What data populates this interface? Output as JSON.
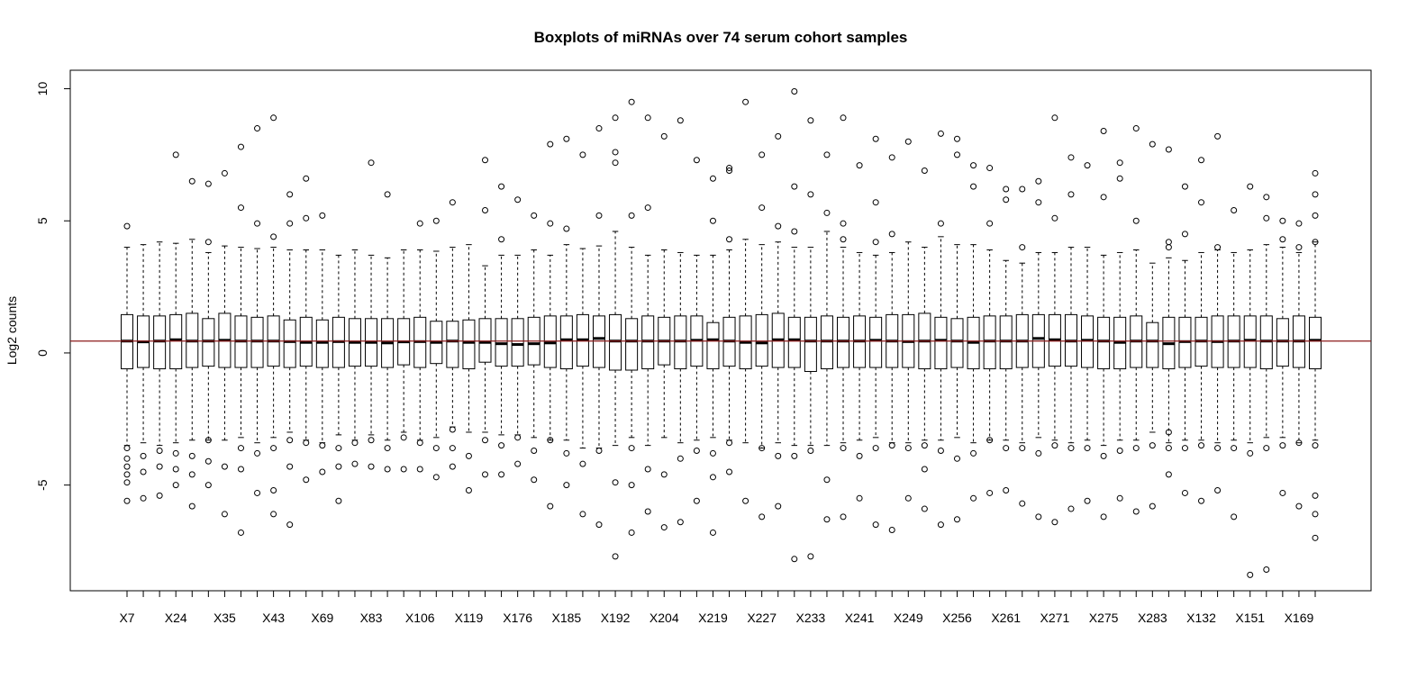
{
  "chart_data": {
    "type": "boxplot",
    "title": "Boxplots of miRNAs over 74 serum cohort samples",
    "xlabel": "",
    "ylabel": "Log2 counts",
    "ylim": [
      -9,
      10.7
    ],
    "y_ticks": [
      -5,
      0,
      5,
      10
    ],
    "x_tick_labels": [
      "X7",
      "X24",
      "X35",
      "X43",
      "X69",
      "X83",
      "X106",
      "X119",
      "X176",
      "X185",
      "X192",
      "X204",
      "X219",
      "X227",
      "X233",
      "X241",
      "X249",
      "X256",
      "X261",
      "X271",
      "X275",
      "X283",
      "X132",
      "X151",
      "X169"
    ],
    "label_every": 3,
    "n_boxes": 74,
    "reference_line": {
      "y": 0.45,
      "color": "#8b1a1a"
    },
    "grid": false,
    "colors": {
      "box": "#000000",
      "median": "#000000",
      "reference": "#8b1a1a"
    },
    "boxes": {
      "q1": [
        -0.6,
        -0.55,
        -0.6,
        -0.6,
        -0.55,
        -0.5,
        -0.55,
        -0.55,
        -0.55,
        -0.5,
        -0.55,
        -0.5,
        -0.55,
        -0.55,
        -0.5,
        -0.5,
        -0.55,
        -0.45,
        -0.55,
        -0.4,
        -0.55,
        -0.6,
        -0.35,
        -0.5,
        -0.5,
        -0.45,
        -0.55,
        -0.6,
        -0.5,
        -0.55,
        -0.65,
        -0.65,
        -0.6,
        -0.45,
        -0.6,
        -0.5,
        -0.6,
        -0.5,
        -0.6,
        -0.5,
        -0.55,
        -0.55,
        -0.7,
        -0.6,
        -0.55,
        -0.55,
        -0.55,
        -0.55,
        -0.55,
        -0.6,
        -0.6,
        -0.55,
        -0.6,
        -0.6,
        -0.6,
        -0.55,
        -0.55,
        -0.5,
        -0.5,
        -0.55,
        -0.6,
        -0.6,
        -0.55,
        -0.55,
        -0.6,
        -0.55,
        -0.5,
        -0.55,
        -0.55,
        -0.55,
        -0.6,
        -0.5,
        -0.55,
        -0.6
      ],
      "median": [
        0.45,
        0.42,
        0.45,
        0.5,
        0.45,
        0.45,
        0.48,
        0.45,
        0.45,
        0.45,
        0.43,
        0.4,
        0.4,
        0.43,
        0.4,
        0.4,
        0.38,
        0.42,
        0.43,
        0.4,
        0.45,
        0.4,
        0.4,
        0.35,
        0.32,
        0.35,
        0.38,
        0.5,
        0.5,
        0.55,
        0.45,
        0.45,
        0.45,
        0.45,
        0.45,
        0.48,
        0.5,
        0.45,
        0.4,
        0.38,
        0.5,
        0.5,
        0.45,
        0.45,
        0.45,
        0.45,
        0.48,
        0.45,
        0.43,
        0.45,
        0.48,
        0.45,
        0.4,
        0.45,
        0.45,
        0.45,
        0.55,
        0.5,
        0.45,
        0.48,
        0.45,
        0.4,
        0.45,
        0.45,
        0.35,
        0.43,
        0.45,
        0.43,
        0.45,
        0.48,
        0.45,
        0.45,
        0.45,
        0.48
      ],
      "q3": [
        1.45,
        1.4,
        1.4,
        1.45,
        1.5,
        1.3,
        1.5,
        1.4,
        1.35,
        1.4,
        1.25,
        1.35,
        1.25,
        1.35,
        1.3,
        1.3,
        1.3,
        1.3,
        1.35,
        1.2,
        1.2,
        1.25,
        1.3,
        1.3,
        1.3,
        1.35,
        1.4,
        1.4,
        1.45,
        1.4,
        1.45,
        1.3,
        1.4,
        1.35,
        1.4,
        1.4,
        1.15,
        1.35,
        1.4,
        1.45,
        1.5,
        1.35,
        1.35,
        1.4,
        1.35,
        1.4,
        1.35,
        1.45,
        1.45,
        1.5,
        1.35,
        1.3,
        1.35,
        1.4,
        1.4,
        1.45,
        1.45,
        1.45,
        1.45,
        1.4,
        1.35,
        1.35,
        1.4,
        1.15,
        1.35,
        1.35,
        1.35,
        1.4,
        1.4,
        1.4,
        1.4,
        1.3,
        1.4,
        1.35
      ],
      "whisker_low": [
        -3.5,
        -3.4,
        -3.5,
        -3.4,
        -3.3,
        -3.3,
        -3.3,
        -3.2,
        -3.4,
        -3.2,
        -3.0,
        -3.3,
        -3.4,
        -3.1,
        -3.3,
        -3.1,
        -3.3,
        -3.0,
        -3.3,
        -3.2,
        -2.8,
        -3.0,
        -3.0,
        -3.1,
        -3.1,
        -3.2,
        -3.3,
        -3.3,
        -3.6,
        -3.6,
        -3.5,
        -3.2,
        -3.5,
        -3.2,
        -3.4,
        -3.3,
        -3.2,
        -3.3,
        -3.4,
        -3.6,
        -3.4,
        -3.5,
        -3.5,
        -3.5,
        -3.4,
        -3.3,
        -3.2,
        -3.4,
        -3.4,
        -3.3,
        -3.3,
        -3.2,
        -3.4,
        -3.3,
        -3.3,
        -3.4,
        -3.2,
        -3.3,
        -3.4,
        -3.3,
        -3.5,
        -3.3,
        -3.3,
        -3.0,
        -3.4,
        -3.3,
        -3.3,
        -3.4,
        -3.3,
        -3.4,
        -3.2,
        -3.2,
        -3.4,
        -3.3
      ],
      "whisker_high": [
        4.0,
        4.1,
        4.2,
        4.15,
        4.3,
        3.8,
        4.05,
        4.0,
        3.95,
        4.0,
        3.9,
        3.9,
        3.9,
        3.7,
        3.9,
        3.7,
        3.6,
        3.9,
        3.9,
        3.85,
        4.0,
        4.1,
        3.3,
        3.7,
        3.7,
        3.9,
        3.7,
        4.1,
        3.95,
        4.05,
        4.6,
        4.0,
        3.7,
        3.9,
        3.8,
        3.7,
        3.7,
        3.9,
        4.3,
        4.1,
        4.2,
        4.0,
        4.0,
        4.6,
        4.0,
        3.8,
        3.7,
        3.8,
        4.2,
        4.0,
        4.4,
        4.1,
        4.1,
        3.9,
        3.5,
        3.4,
        3.8,
        3.8,
        4.0,
        4.0,
        3.7,
        3.8,
        3.9,
        3.4,
        3.6,
        3.5,
        3.8,
        3.9,
        3.8,
        3.9,
        4.1,
        4.0,
        3.8,
        4.2
      ]
    },
    "outliers": [
      [
        1,
        4.8
      ],
      [
        1,
        -3.6
      ],
      [
        1,
        -4.0
      ],
      [
        1,
        -4.3
      ],
      [
        1,
        -4.6
      ],
      [
        1,
        -4.9
      ],
      [
        1,
        -5.6
      ],
      [
        2,
        -3.9
      ],
      [
        2,
        -4.5
      ],
      [
        2,
        -5.5
      ],
      [
        3,
        -3.7
      ],
      [
        3,
        -4.3
      ],
      [
        3,
        -5.4
      ],
      [
        4,
        7.5
      ],
      [
        4,
        -3.8
      ],
      [
        4,
        -4.4
      ],
      [
        4,
        -5.0
      ],
      [
        5,
        6.5
      ],
      [
        5,
        -3.9
      ],
      [
        5,
        -4.6
      ],
      [
        5,
        -5.8
      ],
      [
        6,
        6.4
      ],
      [
        6,
        4.2
      ],
      [
        6,
        -3.3
      ],
      [
        6,
        -4.1
      ],
      [
        6,
        -5.0
      ],
      [
        7,
        6.8
      ],
      [
        7,
        -4.3
      ],
      [
        7,
        -6.1
      ],
      [
        8,
        7.8
      ],
      [
        8,
        5.5
      ],
      [
        8,
        -3.6
      ],
      [
        8,
        -4.4
      ],
      [
        8,
        -6.8
      ],
      [
        9,
        8.5
      ],
      [
        9,
        4.9
      ],
      [
        9,
        -3.8
      ],
      [
        9,
        -5.3
      ],
      [
        10,
        8.9
      ],
      [
        10,
        4.4
      ],
      [
        10,
        -3.6
      ],
      [
        10,
        -5.2
      ],
      [
        10,
        -6.1
      ],
      [
        11,
        6.0
      ],
      [
        11,
        4.9
      ],
      [
        11,
        -3.3
      ],
      [
        11,
        -4.3
      ],
      [
        11,
        -6.5
      ],
      [
        12,
        6.6
      ],
      [
        12,
        5.1
      ],
      [
        12,
        -3.4
      ],
      [
        12,
        -4.8
      ],
      [
        13,
        5.2
      ],
      [
        13,
        -3.5
      ],
      [
        13,
        -4.5
      ],
      [
        14,
        -3.6
      ],
      [
        14,
        -4.3
      ],
      [
        14,
        -5.6
      ],
      [
        15,
        -3.4
      ],
      [
        15,
        -4.2
      ],
      [
        16,
        7.2
      ],
      [
        16,
        -3.3
      ],
      [
        16,
        -4.3
      ],
      [
        17,
        6.0
      ],
      [
        17,
        -3.6
      ],
      [
        17,
        -4.4
      ],
      [
        18,
        -3.2
      ],
      [
        18,
        -4.4
      ],
      [
        19,
        4.9
      ],
      [
        19,
        -3.4
      ],
      [
        19,
        -4.4
      ],
      [
        20,
        5.0
      ],
      [
        20,
        -3.6
      ],
      [
        20,
        -4.7
      ],
      [
        21,
        5.7
      ],
      [
        21,
        -2.9
      ],
      [
        21,
        -3.6
      ],
      [
        21,
        -4.3
      ],
      [
        22,
        -3.9
      ],
      [
        22,
        -5.2
      ],
      [
        23,
        7.3
      ],
      [
        23,
        5.4
      ],
      [
        23,
        -3.3
      ],
      [
        23,
        -4.6
      ],
      [
        24,
        6.3
      ],
      [
        24,
        4.3
      ],
      [
        24,
        -3.5
      ],
      [
        24,
        -4.6
      ],
      [
        25,
        5.8
      ],
      [
        25,
        -3.2
      ],
      [
        25,
        -4.2
      ],
      [
        26,
        5.2
      ],
      [
        26,
        -3.7
      ],
      [
        26,
        -4.8
      ],
      [
        27,
        7.9
      ],
      [
        27,
        4.9
      ],
      [
        27,
        -3.3
      ],
      [
        27,
        -5.8
      ],
      [
        28,
        8.1
      ],
      [
        28,
        4.7
      ],
      [
        28,
        -3.8
      ],
      [
        28,
        -5.0
      ],
      [
        29,
        7.5
      ],
      [
        29,
        -4.2
      ],
      [
        29,
        -6.1
      ],
      [
        30,
        8.5
      ],
      [
        30,
        5.2
      ],
      [
        30,
        -3.7
      ],
      [
        30,
        -6.5
      ],
      [
        31,
        8.9
      ],
      [
        31,
        7.6
      ],
      [
        31,
        7.2
      ],
      [
        31,
        -4.9
      ],
      [
        31,
        -7.7
      ],
      [
        32,
        9.5
      ],
      [
        32,
        5.2
      ],
      [
        32,
        -3.6
      ],
      [
        32,
        -5.0
      ],
      [
        32,
        -6.8
      ],
      [
        33,
        8.9
      ],
      [
        33,
        5.5
      ],
      [
        33,
        -4.4
      ],
      [
        33,
        -6.0
      ],
      [
        34,
        8.2
      ],
      [
        34,
        -4.6
      ],
      [
        34,
        -6.6
      ],
      [
        35,
        8.8
      ],
      [
        35,
        -4.0
      ],
      [
        35,
        -6.4
      ],
      [
        36,
        7.3
      ],
      [
        36,
        -3.7
      ],
      [
        36,
        -5.6
      ],
      [
        37,
        6.6
      ],
      [
        37,
        5.0
      ],
      [
        37,
        -3.8
      ],
      [
        37,
        -4.7
      ],
      [
        37,
        -6.8
      ],
      [
        38,
        7.0
      ],
      [
        38,
        6.9
      ],
      [
        38,
        4.3
      ],
      [
        38,
        -3.4
      ],
      [
        38,
        -4.5
      ],
      [
        39,
        9.5
      ],
      [
        39,
        -5.6
      ],
      [
        40,
        7.5
      ],
      [
        40,
        5.5
      ],
      [
        40,
        -3.6
      ],
      [
        40,
        -6.2
      ],
      [
        41,
        8.2
      ],
      [
        41,
        4.8
      ],
      [
        41,
        -3.9
      ],
      [
        41,
        -5.8
      ],
      [
        42,
        9.9
      ],
      [
        42,
        6.3
      ],
      [
        42,
        4.6
      ],
      [
        42,
        -3.9
      ],
      [
        42,
        -7.8
      ],
      [
        43,
        8.8
      ],
      [
        43,
        6.0
      ],
      [
        43,
        -3.7
      ],
      [
        43,
        -7.7
      ],
      [
        44,
        7.5
      ],
      [
        44,
        5.3
      ],
      [
        44,
        -4.8
      ],
      [
        44,
        -6.3
      ],
      [
        45,
        8.9
      ],
      [
        45,
        4.9
      ],
      [
        45,
        4.3
      ],
      [
        45,
        -3.6
      ],
      [
        45,
        -6.2
      ],
      [
        46,
        7.1
      ],
      [
        46,
        -3.9
      ],
      [
        46,
        -5.5
      ],
      [
        47,
        8.1
      ],
      [
        47,
        5.7
      ],
      [
        47,
        4.2
      ],
      [
        47,
        -3.6
      ],
      [
        47,
        -6.5
      ],
      [
        48,
        7.4
      ],
      [
        48,
        4.5
      ],
      [
        48,
        -3.5
      ],
      [
        48,
        -6.7
      ],
      [
        49,
        8.0
      ],
      [
        49,
        -3.6
      ],
      [
        49,
        -5.5
      ],
      [
        50,
        6.9
      ],
      [
        50,
        -3.5
      ],
      [
        50,
        -4.4
      ],
      [
        50,
        -5.9
      ],
      [
        51,
        8.3
      ],
      [
        51,
        4.9
      ],
      [
        51,
        -3.7
      ],
      [
        51,
        -6.5
      ],
      [
        52,
        8.1
      ],
      [
        52,
        7.5
      ],
      [
        52,
        -4.0
      ],
      [
        52,
        -6.3
      ],
      [
        53,
        7.1
      ],
      [
        53,
        6.3
      ],
      [
        53,
        -3.8
      ],
      [
        53,
        -5.5
      ],
      [
        54,
        7.0
      ],
      [
        54,
        4.9
      ],
      [
        54,
        -3.3
      ],
      [
        54,
        -5.3
      ],
      [
        55,
        6.2
      ],
      [
        55,
        5.8
      ],
      [
        55,
        -3.6
      ],
      [
        55,
        -5.2
      ],
      [
        56,
        6.2
      ],
      [
        56,
        4.0
      ],
      [
        56,
        -3.6
      ],
      [
        56,
        -5.7
      ],
      [
        57,
        6.5
      ],
      [
        57,
        5.7
      ],
      [
        57,
        -3.8
      ],
      [
        57,
        -6.2
      ],
      [
        58,
        8.9
      ],
      [
        58,
        5.1
      ],
      [
        58,
        -3.5
      ],
      [
        58,
        -6.4
      ],
      [
        59,
        7.4
      ],
      [
        59,
        6.0
      ],
      [
        59,
        -3.6
      ],
      [
        59,
        -5.9
      ],
      [
        60,
        7.1
      ],
      [
        60,
        -3.6
      ],
      [
        60,
        -5.6
      ],
      [
        61,
        8.4
      ],
      [
        61,
        5.9
      ],
      [
        61,
        -3.9
      ],
      [
        61,
        -6.2
      ],
      [
        62,
        7.2
      ],
      [
        62,
        6.6
      ],
      [
        62,
        -3.7
      ],
      [
        62,
        -5.5
      ],
      [
        63,
        8.5
      ],
      [
        63,
        5.0
      ],
      [
        63,
        -3.6
      ],
      [
        63,
        -6.0
      ],
      [
        64,
        7.9
      ],
      [
        64,
        -3.5
      ],
      [
        64,
        -5.8
      ],
      [
        65,
        7.7
      ],
      [
        65,
        4.2
      ],
      [
        65,
        4.0
      ],
      [
        65,
        -3.0
      ],
      [
        65,
        -3.6
      ],
      [
        65,
        -4.6
      ],
      [
        66,
        6.3
      ],
      [
        66,
        4.5
      ],
      [
        66,
        -3.6
      ],
      [
        66,
        -5.3
      ],
      [
        67,
        7.3
      ],
      [
        67,
        5.7
      ],
      [
        67,
        -3.5
      ],
      [
        67,
        -5.6
      ],
      [
        68,
        8.2
      ],
      [
        68,
        4.0
      ],
      [
        68,
        -3.6
      ],
      [
        68,
        -5.2
      ],
      [
        69,
        5.4
      ],
      [
        69,
        -3.6
      ],
      [
        69,
        -6.2
      ],
      [
        70,
        6.3
      ],
      [
        70,
        -3.8
      ],
      [
        70,
        -8.4
      ],
      [
        71,
        5.9
      ],
      [
        71,
        5.1
      ],
      [
        71,
        -3.6
      ],
      [
        71,
        -8.2
      ],
      [
        72,
        5.0
      ],
      [
        72,
        4.3
      ],
      [
        72,
        -3.5
      ],
      [
        72,
        -5.3
      ],
      [
        73,
        4.9
      ],
      [
        73,
        4.0
      ],
      [
        73,
        -3.4
      ],
      [
        73,
        -5.8
      ],
      [
        74,
        6.8
      ],
      [
        74,
        6.0
      ],
      [
        74,
        5.2
      ],
      [
        74,
        4.2
      ],
      [
        74,
        -3.5
      ],
      [
        74,
        -5.4
      ],
      [
        74,
        -6.1
      ],
      [
        74,
        -7.0
      ]
    ]
  }
}
